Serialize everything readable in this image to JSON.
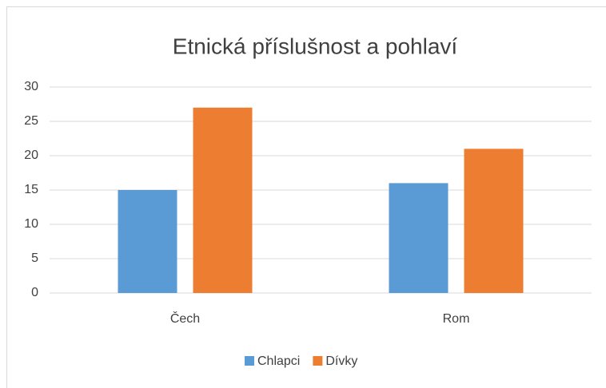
{
  "chart_data": {
    "type": "bar",
    "title": "Etnická příslušnost a pohlaví",
    "categories": [
      "Čech",
      "Rom"
    ],
    "series": [
      {
        "name": "Chlapci",
        "color": "#5b9bd5",
        "values": [
          15,
          16
        ]
      },
      {
        "name": "Dívky",
        "color": "#ed7d31",
        "values": [
          27,
          21
        ]
      }
    ],
    "ylim": [
      0,
      30
    ],
    "yticks": [
      0,
      5,
      10,
      15,
      20,
      25,
      30
    ],
    "grid": true,
    "legend": "bottom"
  }
}
